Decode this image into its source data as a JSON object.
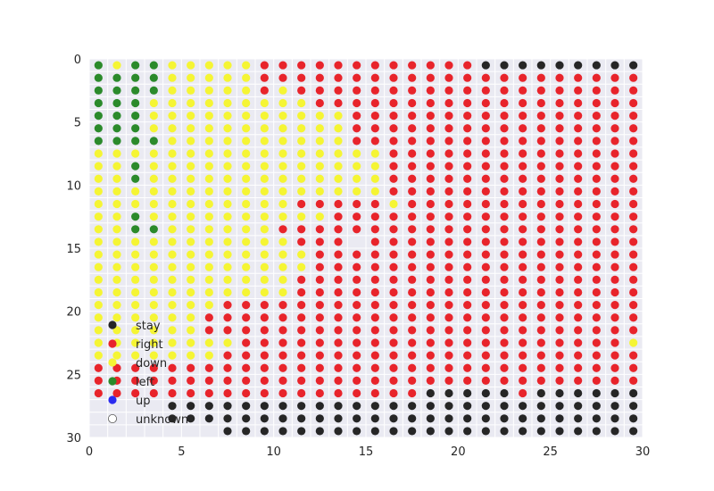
{
  "chart_data": {
    "type": "scatter",
    "title": "",
    "xlabel": "",
    "ylabel": "",
    "xlim": [
      0,
      30
    ],
    "ylim": [
      30,
      0
    ],
    "y_inverted": true,
    "grid": true,
    "x_ticks": [
      0,
      5,
      10,
      15,
      20,
      25,
      30
    ],
    "y_ticks": [
      0,
      5,
      10,
      15,
      20,
      25,
      30
    ],
    "grid_size": [
      30,
      30
    ],
    "cell_center_offset": 0.5,
    "legend_position": "lower-left",
    "categories": [
      "stay",
      "right",
      "down",
      "left",
      "up",
      "unknown"
    ],
    "colors": {
      "stay": "#262626",
      "right": "#e8242b",
      "down": "#f5f534",
      "left": "#2b8a2b",
      "up": "#2b2bf0",
      "unknown": "#ffffff"
    },
    "legend": [
      {
        "label": "stay",
        "key": "stay"
      },
      {
        "label": "right",
        "key": "right"
      },
      {
        "label": "down",
        "key": "down"
      },
      {
        "label": "left",
        "key": "left"
      },
      {
        "label": "up",
        "key": "up"
      },
      {
        "label": "unknown",
        "key": "unknown"
      }
    ],
    "grid_codes": "S=stay R=right D=down L=left U=up .=unknown; rows y=0..29, cols x=0..29",
    "rows": [
      "LDLLDDDDDRRRRRRRRRRRRSSSSSSSSS",
      "LLLLDDDDDRRRRRRRRRRRRRRRRRRRRR",
      "LLLLDDDDDRDRRRRRRRRRRRRRRRRRRR",
      "LLLDDDDDDDDDRRRRRRRRRRRRRRRRRR",
      "LLLDDDDDDDDDDDRRRRRRRRRRRRRRRR",
      "LLLDDDDDDDDDDDRRRRRRRRRRRRRRRR",
      "LLLLDDDDDDDDDDRRRRRRRRRRRRRRRR",
      "DDDDDDDDDDDDDDDDRRRRRRRRRRRRRR",
      "DDLDDDDDDDDDDDDDRRRRRRRRRRRRRR",
      "DDLDDDDDDDDDDDDDRRRRRRRRRRRRRR",
      "DDDDDDDDDDDDDDDDRRRRRRRRRRRRRR",
      "DDDDDDDDDDDRRRRRDRRRRRRRRRRRRR",
      "DDLDDDDDDDDDDRRRRRRRRRRRRRRRRR",
      "DDLLDDDDDDRRRRRRRRRRRRRRRRRRRR",
      "DDDDDDDDDDDRRR.RRRRRRRRRRRRRRR",
      "DDDDDDDDDDDDRRRRRRRRRRRRRRRRRR",
      "DDDDDDDDDDDDRRRRRRRRRRRRRRRRRR",
      "DDDDDDDDDDDRRRRRRRRRRRRRRRRRRR",
      "DDDDDDDDDDDRRRRRRRRRRRRRRRRRRR",
      "DDDDDDDRRRRRRRRRRRRRRRRRRRRRRR",
      "DDDDDDRRRRRRRRRRRRRRRRRRRRRRRR",
      "DDDDDDRRRRRRRRRRRRRRRRRRRRRRRR",
      "DDDDDDDDRRRRRRRRRRRRRRRRRRRRRD",
      "DDDDDDDRRRRRRRRRRRRRRRRRRRRRRR",
      "RRRRRRRRRRRRRRRRRRRRRRRRRRRRRR",
      "RRRRRRRRRRRRRRRRRRRRRRRRRRRRRR",
      "RRRRRRRRRRRRRRRRRRSSSSSRSSSSSS",
      "....SSSSSSSSSSSSSSSSSSSSSSSSSS",
      "....SSSSSSSSSSSSSSSSSSSSSSSSSS",
      ".......SSSSSSSSSSSSSSSSSSSSSSS"
    ]
  }
}
